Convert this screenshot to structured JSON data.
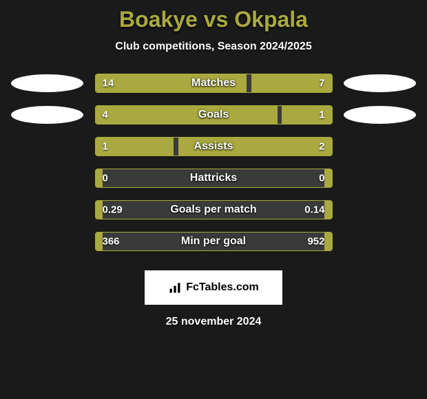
{
  "title": "Boakye vs Okpala",
  "subtitle": "Club competitions, Season 2024/2025",
  "branding": "FcTables.com",
  "date": "25 november 2024",
  "colors": {
    "background": "#1a1a1a",
    "accent": "#a9a93f",
    "bar_bg": "#3a3a3a",
    "text": "#ffffff",
    "ellipse": "#ffffff"
  },
  "bar_container_width": 345,
  "rows": [
    {
      "label": "Matches",
      "left_val": "14",
      "right_val": "7",
      "left_pct": 64,
      "right_pct": 34,
      "show_ellipses": true
    },
    {
      "label": "Goals",
      "left_val": "4",
      "right_val": "1",
      "left_pct": 77,
      "right_pct": 21,
      "show_ellipses": true
    },
    {
      "label": "Assists",
      "left_val": "1",
      "right_val": "2",
      "left_pct": 33,
      "right_pct": 65,
      "show_ellipses": false
    },
    {
      "label": "Hattricks",
      "left_val": "0",
      "right_val": "0",
      "left_pct": 3,
      "right_pct": 3,
      "show_ellipses": false
    },
    {
      "label": "Goals per match",
      "left_val": "0.29",
      "right_val": "0.14",
      "left_pct": 3,
      "right_pct": 3,
      "show_ellipses": false
    },
    {
      "label": "Min per goal",
      "left_val": "366",
      "right_val": "952",
      "left_pct": 3,
      "right_pct": 3,
      "show_ellipses": false
    }
  ]
}
